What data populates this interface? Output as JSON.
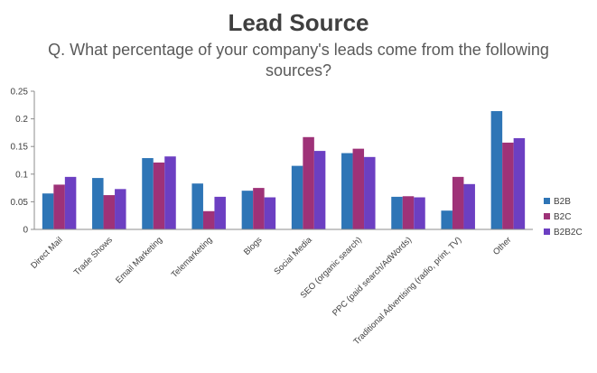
{
  "header": {
    "title": "Lead Source",
    "subtitle": "Q. What percentage of your company's leads come from the following sources?"
  },
  "chart_data": {
    "type": "bar",
    "title": "Lead Source",
    "subtitle": "Q. What percentage of your company's leads come from the following sources?",
    "categories": [
      "Direct Mail",
      "Trade Shows",
      "Email Marketing",
      "Telemarketing",
      "Blogs",
      "Social Media",
      "SEO (organic search)",
      "PPC (paid search/AdWords)",
      "Traditional Advertising (radio, print, TV)",
      "Other"
    ],
    "series": [
      {
        "name": "B2B",
        "color": "#2E75B6",
        "values": [
          0.065,
          0.093,
          0.129,
          0.083,
          0.07,
          0.115,
          0.138,
          0.059,
          0.034,
          0.214
        ]
      },
      {
        "name": "B2C",
        "color": "#9E3278",
        "values": [
          0.081,
          0.062,
          0.121,
          0.033,
          0.075,
          0.167,
          0.146,
          0.06,
          0.095,
          0.157
        ]
      },
      {
        "name": "B2B2C",
        "color": "#6C3FC2",
        "values": [
          0.095,
          0.073,
          0.132,
          0.059,
          0.058,
          0.142,
          0.131,
          0.058,
          0.082,
          0.165
        ]
      }
    ],
    "yticks": [
      "0",
      "0.05",
      "0.1",
      "0.15",
      "0.2",
      "0.25"
    ],
    "ylim": [
      0,
      0.25
    ],
    "grid": false,
    "legend_position": "right"
  }
}
